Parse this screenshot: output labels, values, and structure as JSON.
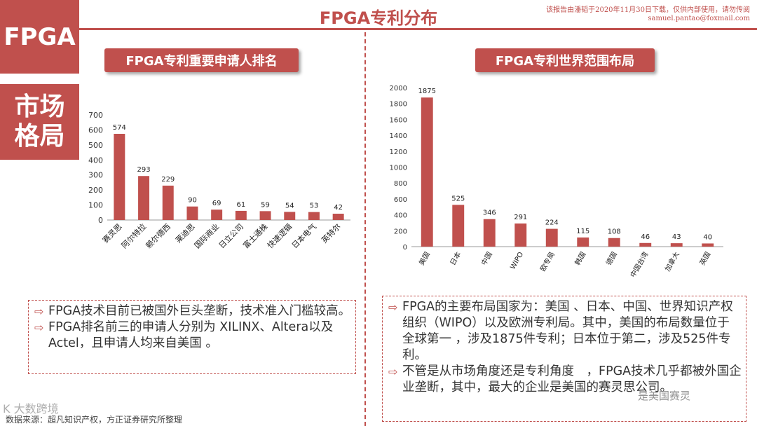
{
  "badges": {
    "fpga": "FPGA",
    "market": "市场格局"
  },
  "header": {
    "title": "FPGA专利分布",
    "disclaimer_line1": "该报告由潘韬于2020年11月30日下载，仅供内部使用，请勿传阅",
    "disclaimer_line2": "samuel.pantao@foxmail.com"
  },
  "left_panel": {
    "title": "FPGA专利重要申请人排名"
  },
  "right_panel": {
    "title": "FPGA专利世界范围布局"
  },
  "chart_data": [
    {
      "type": "bar",
      "title": "FPGA专利重要申请人排名",
      "categories": [
        "赛灵思",
        "阿尔特拉",
        "赖尔德西",
        "莱迪思",
        "国际商业",
        "日立公司",
        "富士通株",
        "快速逻辑",
        "日本电气",
        "英特尔"
      ],
      "values": [
        574,
        293,
        229,
        90,
        69,
        61,
        59,
        54,
        53,
        42
      ],
      "ylim": [
        0,
        700
      ],
      "yticks": [
        0,
        100,
        200,
        300,
        400,
        500,
        600,
        700
      ],
      "xlabel": "",
      "ylabel": "",
      "color": "#c0504d"
    },
    {
      "type": "bar",
      "title": "FPGA专利世界范围布局",
      "categories": [
        "美国",
        "日本",
        "中国",
        "WIPO",
        "欧专局",
        "韩国",
        "德国",
        "中国台湾",
        "加拿大",
        "英国"
      ],
      "values": [
        1875,
        525,
        346,
        291,
        224,
        115,
        108,
        46,
        43,
        40
      ],
      "ylim": [
        0,
        2000
      ],
      "yticks": [
        0,
        200,
        400,
        600,
        800,
        1000,
        1200,
        1400,
        1600,
        1800,
        2000
      ],
      "xlabel": "",
      "ylabel": "",
      "color": "#c0504d"
    }
  ],
  "left_notes": [
    "FPGA技术目前已被国外巨头垄断，技术准入门槛较高。",
    "FPGA排名前三的申请人分别为 XILINX、Altera以及Actel，且申请人均来自美国 。"
  ],
  "right_notes": [
    "FPGA的主要布局国家为：美国 、日本、中国、世界知识产权组织（WIPO）以及欧洲专利局。其中，美国的布局数量位于全球第一 ，涉及1875件专利；日本位于第二，涉及525件专利。",
    "不管是从市场角度还是专利角度　，FPGA技术几乎都被外国企业垄断，其中，最大的企业是美国的赛灵思公司。"
  ],
  "footer": {
    "source": "数据来源：超凡知识产权，方正证券研究所整理"
  },
  "watermarks": {
    "left": "K 大数跨境",
    "right": "是美国赛灵"
  }
}
